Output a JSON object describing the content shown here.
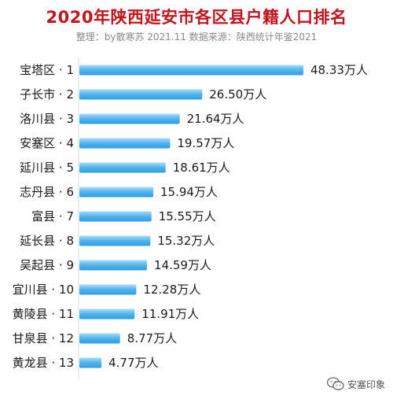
{
  "header": {
    "title": "2020年陕西延安市各区县户籍人口排名",
    "subtitle": "整理：by散寒苏  2021.11  数据来源：陕西统计年鉴2021"
  },
  "watermark": {
    "icon": "wechat-icon",
    "text": "安塞印象"
  },
  "colors": {
    "title": "#c0141e",
    "bar_light": "#a9dcf6",
    "bar_dark": "#2f9ee0"
  },
  "chart_data": {
    "type": "bar",
    "orientation": "horizontal",
    "title": "2020年陕西延安市各区县户籍人口排名",
    "categories": [
      "宝塔区 · 1",
      "子长市 · 2",
      "洛川县 · 3",
      "安塞区 · 4",
      "延川县 · 5",
      "志丹县 · 6",
      "富县 · 7",
      "延长县 · 8",
      "吴起县 · 9",
      "宜川县 · 10",
      "黄陵县 · 11",
      "甘泉县 · 12",
      "黄龙县 · 13"
    ],
    "values": [
      48.33,
      26.5,
      21.64,
      19.57,
      18.61,
      15.94,
      15.55,
      15.32,
      14.59,
      12.28,
      11.91,
      8.77,
      4.77
    ],
    "value_labels": [
      "48.33万人",
      "26.50万人",
      "21.64万人",
      "19.57万人",
      "18.61万人",
      "15.94万人",
      "15.55万人",
      "15.32万人",
      "14.59万人",
      "12.28万人",
      "11.91万人",
      "8.77万人",
      "4.77万人"
    ],
    "unit": "万人",
    "xlim": [
      0,
      48.33
    ],
    "grid": false,
    "legend": "none"
  }
}
